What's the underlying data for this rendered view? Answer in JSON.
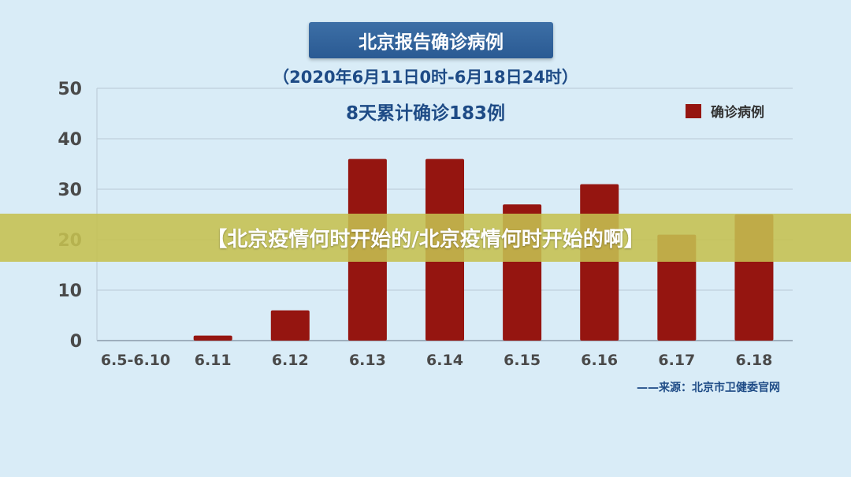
{
  "banner": {
    "text": "【北京疫情何时开始的/北京疫情何时开始的啊】"
  },
  "source": "——来源：北京市卫健委官网",
  "chart_data": {
    "type": "bar",
    "title": "北京报告确诊病例",
    "subtitle": "（2020年6月11日0时-6月18日24时）",
    "summary": "8天累计确诊183例",
    "categories": [
      "6.5-6.10",
      "6.11",
      "6.12",
      "6.13",
      "6.14",
      "6.15",
      "6.16",
      "6.17",
      "6.18"
    ],
    "series": [
      {
        "name": "确诊病例",
        "values": [
          0,
          1,
          6,
          36,
          36,
          27,
          31,
          21,
          25
        ],
        "color": "#951510"
      }
    ],
    "ylim": [
      0,
      50
    ],
    "yticks": [
      0,
      10,
      20,
      30,
      40,
      50
    ],
    "grid": true,
    "legend_position": "top-right"
  }
}
